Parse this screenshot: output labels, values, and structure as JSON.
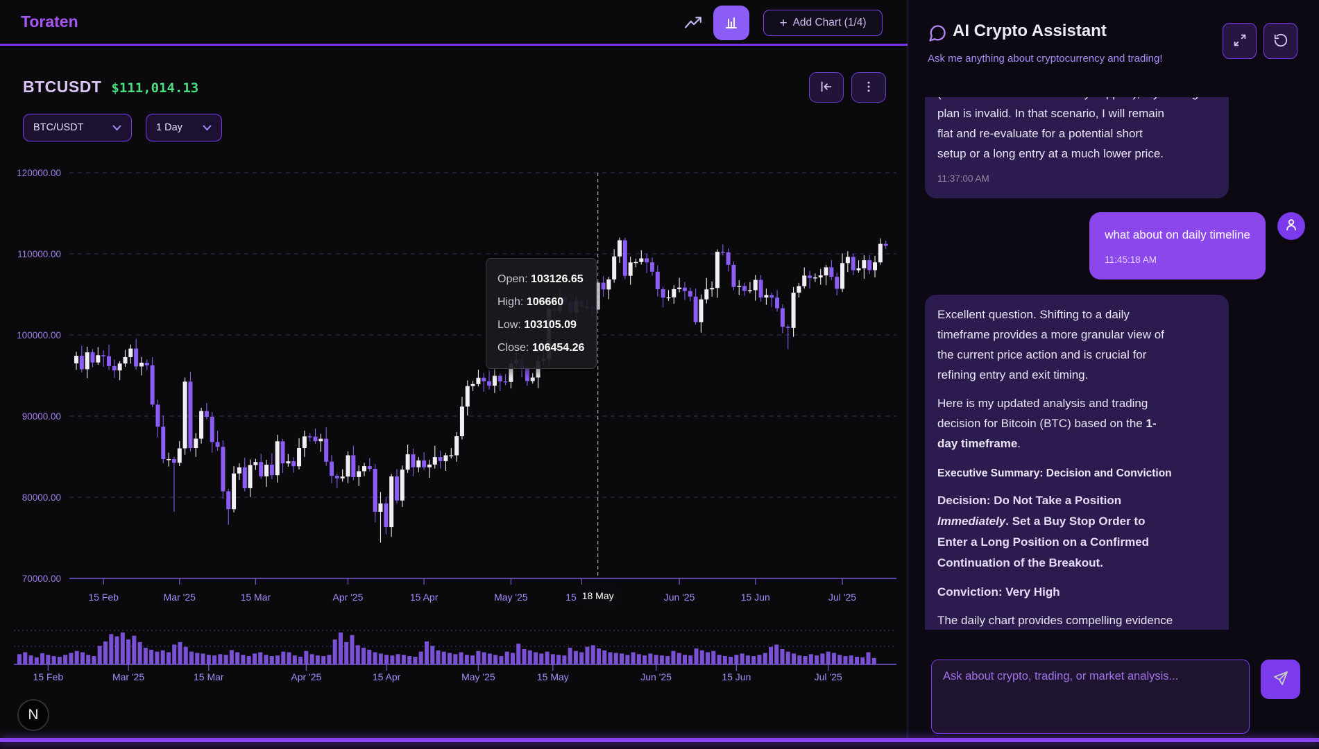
{
  "topbar": {
    "logo": "Toraten",
    "plus": "+",
    "add_chart_label": "Add Chart (1/4)"
  },
  "chart": {
    "symbol": "BTCUSDT",
    "price": "$111,014.13",
    "pair_select": "BTC/USDT",
    "interval_select": "1 Day",
    "badge": "N",
    "tooltip": {
      "open_label": "Open:",
      "open_value": "103126.65",
      "high_label": "High:",
      "high_value": "106660",
      "low_label": "Low:",
      "low_value": "103105.09",
      "close_label": "Close:",
      "close_value": "106454.26"
    }
  },
  "chart_data": {
    "type": "candlestick",
    "symbol": "BTCUSDT",
    "interval": "1 Day",
    "colors": {
      "up": "#f2eff6",
      "down": "#8b5cf6",
      "volume": "#8155e0",
      "grid": "#463177",
      "axis": "#7a5ad2",
      "label": "#a78bfa"
    },
    "y_axis": {
      "min": 70000,
      "max": 120000,
      "ticks": [
        {
          "value": 120000,
          "label": "120000.00"
        },
        {
          "value": 110000,
          "label": "110000.00"
        },
        {
          "value": 100000,
          "label": "100000.00"
        },
        {
          "value": 90000,
          "label": "90000.00"
        },
        {
          "value": 80000,
          "label": "80000.00"
        },
        {
          "value": 70000,
          "label": "70000.00"
        }
      ]
    },
    "x_ticks": [
      {
        "i": 5,
        "label": "15 Feb"
      },
      {
        "i": 19,
        "label": "Mar '25"
      },
      {
        "i": 33,
        "label": "15 Mar"
      },
      {
        "i": 50,
        "label": "Apr '25"
      },
      {
        "i": 64,
        "label": "15 Apr"
      },
      {
        "i": 80,
        "label": "May '25"
      },
      {
        "i": 93,
        "label": "15 May"
      },
      {
        "i": 111,
        "label": "Jun '25"
      },
      {
        "i": 125,
        "label": "15 Jun"
      },
      {
        "i": 141,
        "label": "Jul '25"
      }
    ],
    "crosshair": {
      "index": 96,
      "label": "18 May"
    },
    "hovered_candle": {
      "open": 103126.65,
      "high": 106660,
      "low": 103105.09,
      "close": 106454.26
    },
    "candles": [
      [
        96500,
        97930,
        95700,
        97430
      ],
      [
        97430,
        98630,
        95380,
        95780
      ],
      [
        95780,
        98560,
        94680,
        97860
      ],
      [
        97860,
        98260,
        96010,
        96610
      ],
      [
        96610,
        98500,
        96310,
        97500
      ],
      [
        97500,
        98100,
        96080,
        97380
      ],
      [
        97380,
        98780,
        95670,
        96170
      ],
      [
        96170,
        96970,
        94730,
        95630
      ],
      [
        95630,
        96780,
        94430,
        96480
      ],
      [
        96480,
        98170,
        96080,
        97270
      ],
      [
        97270,
        98830,
        96470,
        98330
      ],
      [
        98330,
        99530,
        95720,
        96120
      ],
      [
        96120,
        97280,
        95020,
        96580
      ],
      [
        96580,
        96980,
        95670,
        96270
      ],
      [
        96270,
        97270,
        91120,
        91420
      ],
      [
        91420,
        92020,
        87400,
        88700
      ],
      [
        88700,
        90100,
        84200,
        84700
      ],
      [
        84700,
        85500,
        83800,
        84700
      ],
      [
        84700,
        85000,
        78200,
        84250
      ],
      [
        84250,
        86930,
        83850,
        86030
      ],
      [
        86030,
        94750,
        85230,
        94250
      ],
      [
        94250,
        95450,
        85670,
        86070
      ],
      [
        86070,
        87920,
        84970,
        87220
      ],
      [
        87220,
        91020,
        86620,
        90620
      ],
      [
        90620,
        91620,
        89610,
        89910
      ],
      [
        89910,
        90510,
        85500,
        86800
      ],
      [
        86800,
        88200,
        85710,
        86210
      ],
      [
        86210,
        87010,
        79830,
        80730
      ],
      [
        80730,
        81030,
        76600,
        78530
      ],
      [
        78530,
        83830,
        78130,
        82930
      ],
      [
        82930,
        84180,
        82130,
        83680
      ],
      [
        83680,
        84880,
        80720,
        81120
      ],
      [
        81120,
        84670,
        80020,
        83970
      ],
      [
        83970,
        84740,
        83370,
        84340
      ],
      [
        84340,
        85340,
        82280,
        82580
      ],
      [
        82580,
        84610,
        81280,
        84010
      ],
      [
        84010,
        85410,
        82220,
        82720
      ],
      [
        82720,
        87700,
        81820,
        86900
      ],
      [
        86900,
        87200,
        82970,
        84170
      ],
      [
        84170,
        85330,
        83770,
        84430
      ],
      [
        84430,
        84930,
        83020,
        83820
      ],
      [
        83820,
        87270,
        83420,
        86070
      ],
      [
        86070,
        88200,
        84970,
        87500
      ],
      [
        87500,
        87900,
        86870,
        87470
      ],
      [
        87470,
        88470,
        86600,
        86900
      ],
      [
        86900,
        87810,
        85600,
        87210
      ],
      [
        87210,
        88610,
        83880,
        84380
      ],
      [
        84380,
        85180,
        81740,
        82640
      ],
      [
        82640,
        82940,
        81130,
        82330
      ],
      [
        82330,
        83450,
        81930,
        82550
      ],
      [
        82550,
        85670,
        81750,
        85170
      ],
      [
        85170,
        86370,
        82090,
        82490
      ],
      [
        82490,
        83910,
        81390,
        83210
      ],
      [
        83210,
        84240,
        82610,
        83840
      ],
      [
        83840,
        84840,
        83200,
        83500
      ],
      [
        83500,
        84100,
        76910,
        78210
      ],
      [
        78210,
        80640,
        74400,
        79240
      ],
      [
        79240,
        80040,
        75420,
        76320
      ],
      [
        76320,
        82870,
        75120,
        82570
      ],
      [
        82570,
        83470,
        79200,
        79600
      ],
      [
        79600,
        83900,
        78800,
        83400
      ],
      [
        83400,
        86490,
        83000,
        85290
      ],
      [
        85290,
        85990,
        82590,
        83690
      ],
      [
        83690,
        84940,
        83090,
        84540
      ],
      [
        84540,
        85540,
        83390,
        83690
      ],
      [
        83690,
        84630,
        82390,
        84030
      ],
      [
        84030,
        86350,
        83530,
        84950
      ],
      [
        84950,
        85750,
        83550,
        84450
      ],
      [
        84450,
        85470,
        83250,
        85170
      ],
      [
        85170,
        86070,
        84770,
        85170
      ],
      [
        85170,
        88020,
        84370,
        87520
      ],
      [
        87520,
        92370,
        87120,
        91170
      ],
      [
        91170,
        94400,
        90070,
        93700
      ],
      [
        93700,
        94350,
        93100,
        93950
      ],
      [
        93950,
        95720,
        93650,
        94720
      ],
      [
        94720,
        95320,
        93000,
        94300
      ],
      [
        94300,
        95700,
        93250,
        93750
      ],
      [
        93750,
        95780,
        92850,
        94980
      ],
      [
        94980,
        95280,
        93080,
        94280
      ],
      [
        94280,
        95180,
        93810,
        94210
      ],
      [
        94210,
        96990,
        93410,
        96490
      ],
      [
        96490,
        98110,
        96090,
        96910
      ],
      [
        96910,
        97610,
        94790,
        95890
      ],
      [
        95890,
        96290,
        93720,
        94320
      ],
      [
        94320,
        95320,
        94020,
        94750
      ],
      [
        94750,
        97400,
        93450,
        96800
      ],
      [
        96800,
        98430,
        96300,
        97030
      ],
      [
        97030,
        104040,
        96130,
        103240
      ],
      [
        103240,
        103540,
        101770,
        102970
      ],
      [
        102970,
        105600,
        102570,
        104700
      ],
      [
        104700,
        105200,
        103310,
        104110
      ],
      [
        104110,
        105310,
        102410,
        102810
      ],
      [
        102810,
        104870,
        101710,
        104170
      ],
      [
        104170,
        104570,
        102860,
        103460
      ],
      [
        103460,
        104480,
        103160,
        103480
      ],
      [
        103480,
        104080,
        101890,
        103190
      ],
      [
        103127,
        106660,
        103105,
        106454
      ],
      [
        106450,
        107250,
        104710,
        105610
      ],
      [
        105610,
        107150,
        104410,
        106850
      ],
      [
        106850,
        110580,
        106450,
        109680
      ],
      [
        109680,
        112000,
        108880,
        111670
      ],
      [
        111670,
        111970,
        106890,
        107290
      ],
      [
        107290,
        109640,
        106190,
        108940
      ],
      [
        108940,
        109390,
        108340,
        108990
      ],
      [
        108990,
        110440,
        108690,
        109440
      ],
      [
        109440,
        110040,
        107650,
        108950
      ],
      [
        108950,
        109550,
        107300,
        107800
      ],
      [
        107800,
        108600,
        104740,
        105640
      ],
      [
        105640,
        105940,
        103400,
        104600
      ],
      [
        104600,
        105540,
        104200,
        104640
      ],
      [
        104640,
        106150,
        103840,
        105650
      ],
      [
        105650,
        107040,
        105250,
        105840
      ],
      [
        105840,
        106540,
        104320,
        105420
      ],
      [
        105420,
        105820,
        104130,
        104730
      ],
      [
        104730,
        105730,
        101280,
        101580
      ],
      [
        101580,
        104990,
        100280,
        104390
      ],
      [
        104390,
        107020,
        103890,
        105620
      ],
      [
        105620,
        106590,
        104720,
        105790
      ],
      [
        105790,
        110550,
        104590,
        110250
      ],
      [
        110250,
        111150,
        109790,
        110190
      ],
      [
        110190,
        110690,
        107840,
        108640
      ],
      [
        108640,
        109040,
        105520,
        105920
      ],
      [
        105920,
        106740,
        104940,
        106040
      ],
      [
        106040,
        106440,
        104830,
        105430
      ],
      [
        105430,
        106520,
        105130,
        105520
      ],
      [
        105520,
        107390,
        104220,
        106790
      ],
      [
        106790,
        107390,
        104120,
        104620
      ],
      [
        104620,
        105720,
        103720,
        104920
      ],
      [
        104920,
        105220,
        103410,
        104610
      ],
      [
        104610,
        105510,
        102890,
        103290
      ],
      [
        103290,
        103790,
        100210,
        101010
      ],
      [
        101010,
        101310,
        98240,
        100870
      ],
      [
        100870,
        105920,
        99770,
        105220
      ],
      [
        105220,
        106420,
        104620,
        106020
      ],
      [
        106020,
        108320,
        105720,
        107320
      ],
      [
        107320,
        107920,
        105720,
        107020
      ],
      [
        107020,
        107590,
        106520,
        107090
      ],
      [
        107090,
        108140,
        106190,
        107340
      ],
      [
        107340,
        108640,
        106140,
        108340
      ],
      [
        108340,
        109240,
        106770,
        107170
      ],
      [
        107170,
        107670,
        104890,
        105690
      ],
      [
        105690,
        110060,
        105290,
        108860
      ],
      [
        108860,
        110320,
        107760,
        109620
      ],
      [
        109620,
        110020,
        107380,
        107980
      ],
      [
        107980,
        109210,
        107680,
        108210
      ],
      [
        108210,
        109820,
        106910,
        109220
      ],
      [
        109220,
        109820,
        107490,
        107990
      ],
      [
        107990,
        109750,
        107090,
        108950
      ],
      [
        108950,
        111900,
        108650,
        111230
      ],
      [
        111230,
        111630,
        110590,
        110990
      ]
    ],
    "volumes": [
      32,
      38,
      28,
      22,
      35,
      30,
      26,
      24,
      30,
      36,
      42,
      38,
      30,
      26,
      58,
      72,
      95,
      88,
      100,
      78,
      90,
      70,
      52,
      46,
      40,
      44,
      38,
      62,
      70,
      55,
      40,
      36,
      34,
      30,
      28,
      32,
      30,
      45,
      38,
      30,
      26,
      34,
      38,
      30,
      26,
      28,
      40,
      38,
      28,
      24,
      42,
      32,
      28,
      26,
      30,
      78,
      100,
      70,
      92,
      60,
      52,
      46,
      38,
      34,
      30,
      28,
      32,
      30,
      26,
      24,
      40,
      72,
      58,
      44,
      40,
      36,
      32,
      38,
      30,
      28,
      42,
      38,
      34,
      30,
      26,
      40,
      36,
      65,
      48,
      44,
      38,
      34,
      40,
      32,
      30,
      28,
      52,
      42,
      38,
      55,
      60,
      50,
      44,
      38,
      36,
      34,
      30,
      38,
      32,
      28,
      34,
      30,
      28,
      26,
      42,
      36,
      30,
      28,
      50,
      44,
      38,
      42,
      30,
      26,
      24,
      30,
      34,
      28,
      26,
      30,
      36,
      55,
      62,
      48,
      40,
      34,
      28,
      26,
      32,
      28,
      34,
      40,
      36,
      30,
      26,
      28,
      24,
      22,
      38,
      20
    ]
  },
  "chat": {
    "title": "AI Crypto Assistant",
    "subtitle": "Ask me anything about cryptocurrency and trading!",
    "messages": {
      "m1": {
        "clipped_line": "(a sustained break below key support), my trading",
        "l1": "plan is invalid. In that scenario, I will remain",
        "l2": "flat and re-evaluate for a potential short",
        "l3": "setup or a long entry at a much lower price.",
        "time": "11:37:00 AM"
      },
      "m2": {
        "text": "what about on daily timeline",
        "time": "11:45:18 AM"
      },
      "m3": {
        "p1": [
          "Excellent question. Shifting to a daily",
          "timeframe provides a more granular view of",
          "the current price action and is crucial for",
          "refining entry and exit timing."
        ],
        "p2_l1": "Here is my updated analysis and trading",
        "p2_l2": "decision for Bitcoin (BTC) based on the ",
        "p2_l2_bold": "1-",
        "p2_l3_bold": "day timeframe",
        "p2_l3_end": ".",
        "heading": "Executive Summary: Decision and Conviction",
        "d_l1": "Decision: Do Not Take a Position",
        "d_l2_italic": "Immediately",
        "d_l2_rest": ". Set a Buy Stop Order to",
        "d_l3": "Enter a Long Position on a Confirmed",
        "d_l4": "Continuation of the Breakout.",
        "conviction": "Conviction: Very High",
        "last_line": "The daily chart provides compelling evidence"
      }
    },
    "input_placeholder": "Ask about crypto, trading, or market analysis..."
  }
}
